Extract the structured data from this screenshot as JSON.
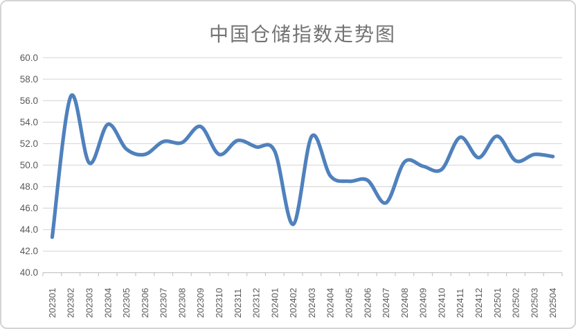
{
  "chart_data": {
    "type": "line",
    "title": "中国仓储指数走势图",
    "categories": [
      "202301",
      "202302",
      "202303",
      "202304",
      "202305",
      "202306",
      "202307",
      "202308",
      "202309",
      "202310",
      "202311",
      "202312",
      "202401",
      "202402",
      "202403",
      "202404",
      "202405",
      "202406",
      "202407",
      "202408",
      "202409",
      "202410",
      "202411",
      "202412",
      "202501",
      "202502",
      "202503",
      "202504"
    ],
    "values": [
      43.3,
      56.4,
      50.2,
      53.8,
      51.5,
      51.0,
      52.2,
      52.1,
      53.6,
      51.0,
      52.3,
      51.7,
      51.3,
      44.5,
      52.7,
      49.0,
      48.5,
      48.6,
      46.5,
      50.3,
      49.9,
      49.6,
      52.6,
      50.7,
      52.7,
      50.4,
      51.0,
      50.8
    ],
    "xlabel": "",
    "ylabel": "",
    "ylim": [
      40.0,
      60.0
    ],
    "y_tick_step": 2.0,
    "y_tick_labels": [
      "60.0",
      "58.0",
      "56.0",
      "54.0",
      "52.0",
      "50.0",
      "48.0",
      "46.0",
      "44.0",
      "42.0",
      "40.0"
    ],
    "x_tick_label_rotation_deg": -90,
    "grid": "horizontal",
    "legend": "none",
    "smoothed_line": true,
    "colors": {
      "line": "#4f81bd",
      "gridline": "#d9d9d9",
      "axis": "#c6c6c6",
      "tick_label": "#595959",
      "title": "#737373",
      "background": "#ffffff",
      "frame_border": "#d4d4d4"
    }
  }
}
